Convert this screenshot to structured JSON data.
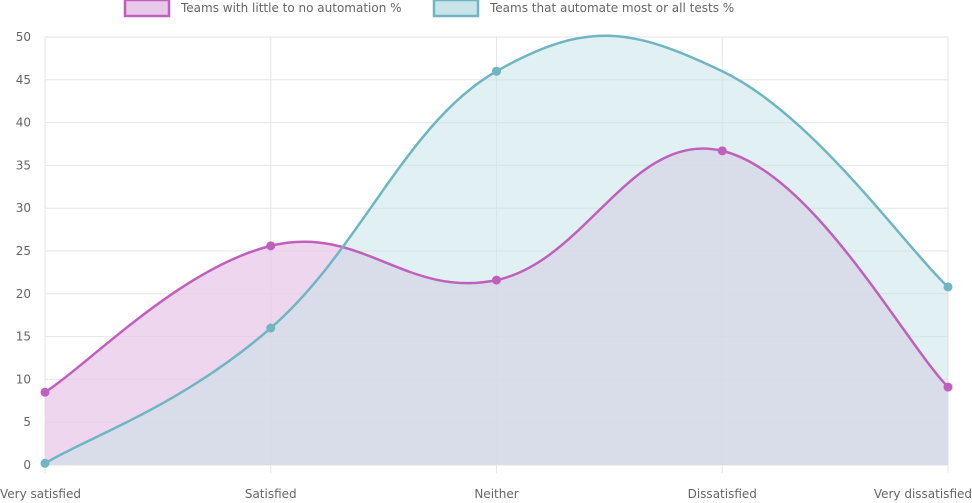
{
  "chart_data": {
    "type": "line",
    "title": "",
    "xlabel": "",
    "ylabel": "",
    "categories": [
      "Very satisfied",
      "Satisfied",
      "Neither",
      "Dissatisfied",
      "Very dissatisfied"
    ],
    "ylim": [
      0,
      50
    ],
    "yticks": [
      0,
      5,
      10,
      15,
      20,
      25,
      30,
      35,
      40,
      45,
      50
    ],
    "grid": true,
    "legend_position": "top",
    "series": [
      {
        "name": "Teams with little to no automation %",
        "values": [
          8.5,
          25.6,
          21.6,
          36.7,
          9.1
        ],
        "line_color": "#c060bc",
        "fill_color": "#e8c8e8"
      },
      {
        "name": "Teams that automate most or all tests %",
        "values": [
          0.2,
          16.0,
          46.0,
          46.0,
          20.8
        ],
        "line_color": "#6fb6c2",
        "fill_color": "#c8e4e8"
      }
    ],
    "fill": true,
    "smooth": true
  }
}
